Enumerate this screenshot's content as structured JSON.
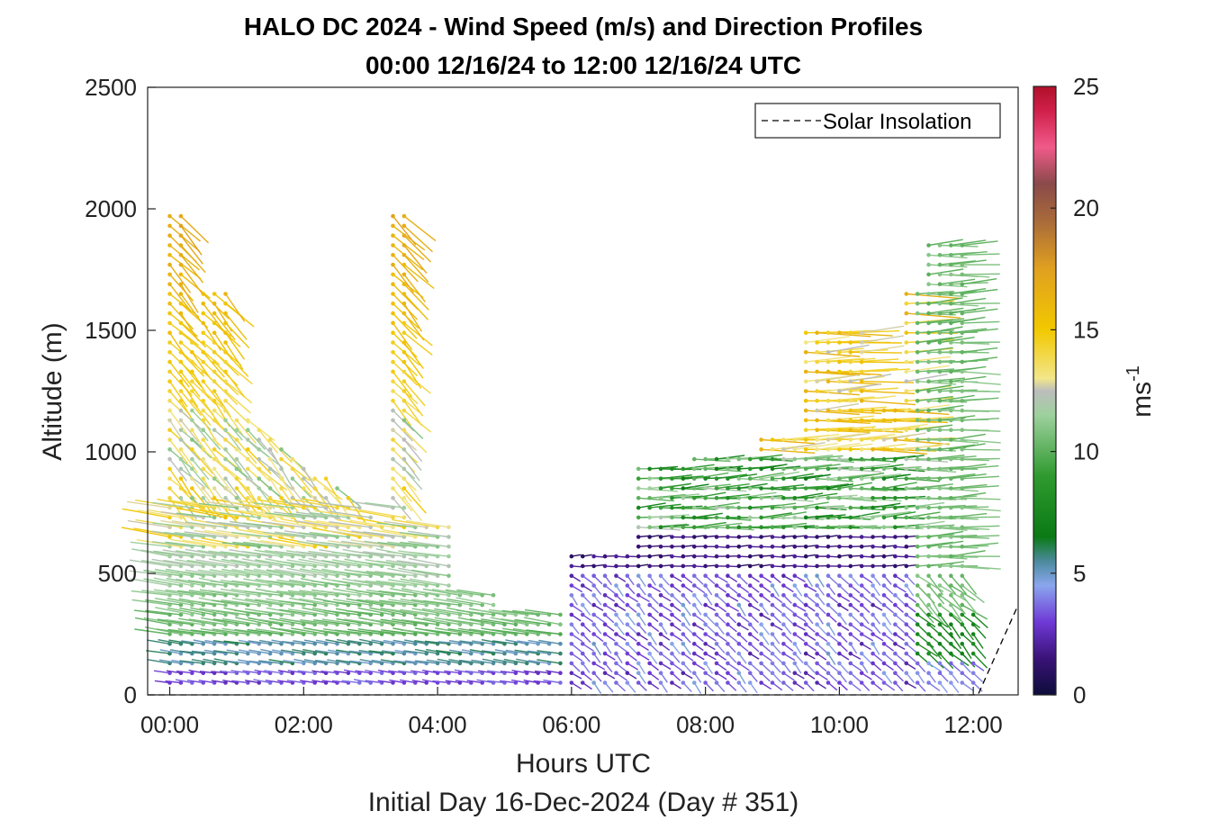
{
  "chart_data": {
    "type": "quiver",
    "title": "HALO DC 2024 - Wind Speed (m/s) and Direction Profiles",
    "subtitle": "00:00 12/16/24 to 12:00 12/16/24  UTC",
    "xlabel": "Hours UTC",
    "xlabel2": "Initial Day 16-Dec-2024 (Day # 351)",
    "ylabel": "Altitude (m)",
    "xlim": [
      -0.33,
      12.67
    ],
    "ylim": [
      0,
      2500
    ],
    "xticks": [
      0,
      2,
      4,
      6,
      8,
      10,
      12
    ],
    "xtick_labels": [
      "00:00",
      "02:00",
      "04:00",
      "06:00",
      "08:00",
      "10:00",
      "12:00"
    ],
    "yticks": [
      0,
      500,
      1000,
      1500,
      2000,
      2500
    ],
    "ytick_labels": [
      "0",
      "500",
      "1000",
      "1500",
      "2000",
      "2500"
    ],
    "legend": {
      "label": "Solar Insolation",
      "placement": "top-right",
      "style": "dashed"
    },
    "colorbar": {
      "label": "ms",
      "label_exp": "-1",
      "range": [
        0,
        25
      ],
      "ticks": [
        0,
        5,
        10,
        15,
        20,
        25
      ],
      "tick_labels": [
        "0",
        "5",
        "10",
        "15",
        "20",
        "25"
      ],
      "stops": [
        [
          0,
          "#0d0d3a"
        ],
        [
          1.5,
          "#3a1278"
        ],
        [
          3,
          "#6f3ad6"
        ],
        [
          4.5,
          "#8aa6ee"
        ],
        [
          5.5,
          "#4b8a9c"
        ],
        [
          6.5,
          "#0a7a14"
        ],
        [
          9,
          "#2f9a2f"
        ],
        [
          11.5,
          "#9ed09e"
        ],
        [
          12.5,
          "#bdbdbd"
        ],
        [
          13,
          "#f2e68a"
        ],
        [
          15,
          "#f2c800"
        ],
        [
          17.5,
          "#e0a020"
        ],
        [
          19.5,
          "#a86a3a"
        ],
        [
          21,
          "#8a4a4a"
        ],
        [
          22.5,
          "#f05a8a"
        ],
        [
          24,
          "#d0204a"
        ],
        [
          25,
          "#b0102a"
        ]
      ]
    },
    "solar_insolation": {
      "x": [
        -0.33,
        11.9,
        12.07,
        12.67
      ],
      "y": [
        0,
        0,
        0,
        370
      ]
    }
  }
}
